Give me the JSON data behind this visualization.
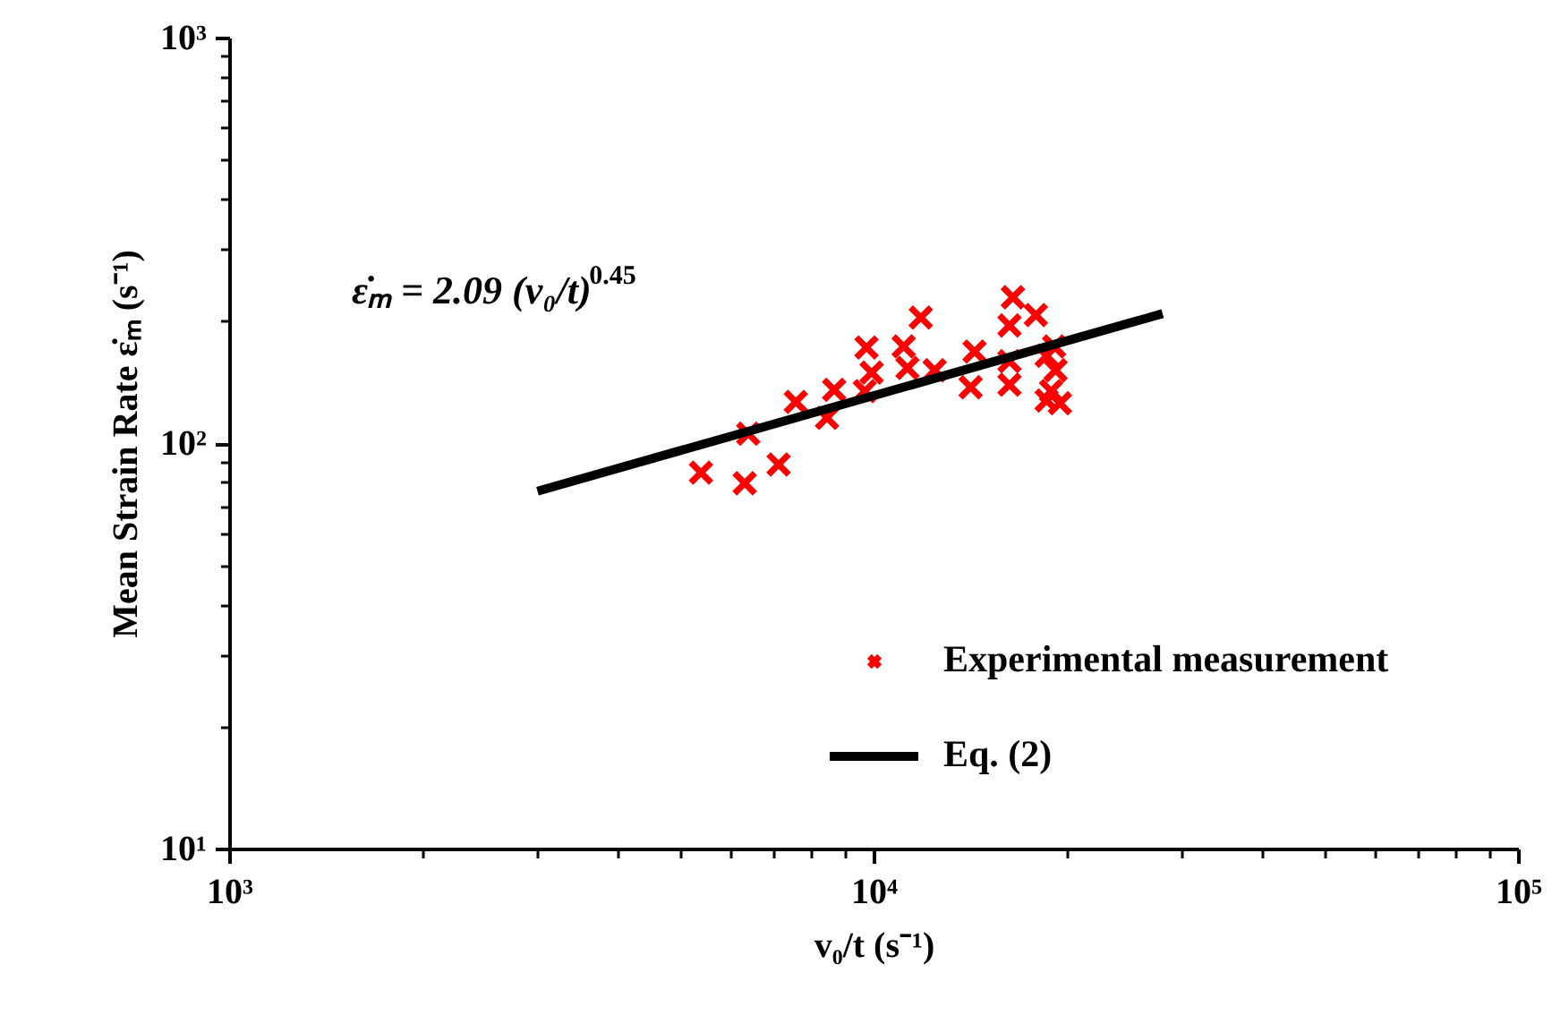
{
  "chart_data": {
    "type": "scatter",
    "xlabel": "v₀/t (s⁻¹)",
    "ylabel": "Mean Strain Rate ε̇ₘ (s⁻¹)",
    "annotations": [
      "ε̇ₘ = 2.09 (v₀/t)$^{0.45}$"
    ],
    "log": "xy",
    "grid": false,
    "legend": "bottom right",
    "marker": "cross",
    "xlim": [
      1000,
      100000
    ],
    "ylim": [
      10,
      1000
    ],
    "xticks": [
      {
        "value": 1000,
        "label": "10³"
      },
      {
        "value": 10000,
        "label": "10⁴"
      },
      {
        "value": 100000,
        "label": "10⁵"
      }
    ],
    "yticks": [
      {
        "value": 10,
        "label": "10¹"
      },
      {
        "value": 100,
        "label": "10²"
      },
      {
        "value": 1000,
        "label": "10³"
      }
    ],
    "series": [
      {
        "name": "Experimental measurement",
        "color": "#ff0000",
        "x": [
          5380,
          6290,
          7100,
          6370,
          7550,
          8440,
          8660,
          9660,
          9720,
          9900,
          11100,
          11250,
          11800,
          12400,
          14100,
          14300,
          16400,
          16200,
          16200,
          16200,
          17800,
          18500,
          18800,
          19100,
          18500,
          19400,
          19000
        ],
        "values": [
          85,
          80,
          89,
          106,
          127,
          116,
          136,
          135,
          173,
          150,
          174,
          154,
          205,
          152,
          138,
          169,
          230,
          196,
          160,
          140,
          208,
          165,
          135,
          152,
          128,
          126,
          174
        ]
      },
      {
        "name": "Eq. (2)",
        "type": "line",
        "color": "#000000",
        "line_style": "solid",
        "marker": "none",
        "x": [
          3000,
          28000
        ],
        "values": [
          76.5,
          209.6
        ]
      }
    ]
  }
}
